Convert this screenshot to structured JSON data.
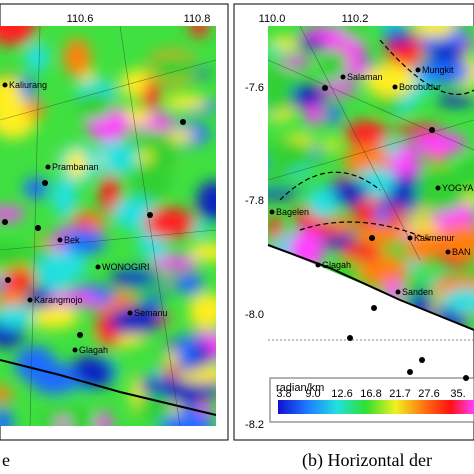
{
  "left_panel": {
    "axis_labels": [
      "110.6",
      "110.8"
    ],
    "places": [
      "Kaliurang",
      "Prambanan",
      "Bek",
      "WONOGIRI",
      "Karangmojo",
      "Semanu",
      "Glagah"
    ],
    "caption": "e"
  },
  "right_panel": {
    "axis_labels_x": [
      "110.0",
      "110.2"
    ],
    "axis_labels_y": [
      "-7.6",
      "-7.8",
      "-8.0",
      "-8.2"
    ],
    "places": [
      "Salaman",
      "Mungkit",
      "Borobudur",
      "YOGYA",
      "Bagelen",
      "Kalimenur",
      "BAN",
      "Glagah",
      "Sanden"
    ],
    "caption": "(b) Horizontal der"
  },
  "legend": {
    "title": "radian/km",
    "ticks": [
      "3.8",
      "9.0",
      "12.6",
      "16.8",
      "21.7",
      "27.6",
      "35."
    ]
  }
}
